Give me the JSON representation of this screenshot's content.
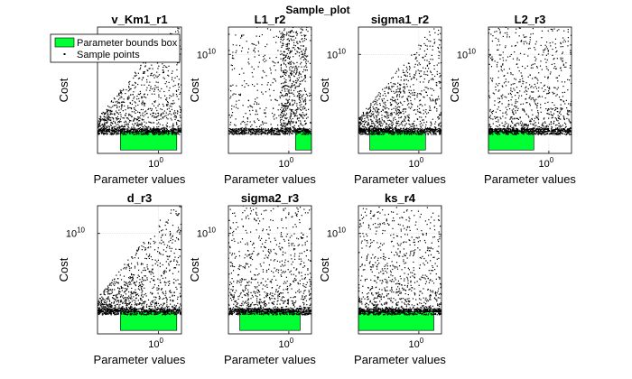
{
  "figure": {
    "title": "Sample_plot",
    "background": "#ffffff",
    "box_color": "#00ff33",
    "point_color": "#000000"
  },
  "legend": {
    "placement": "top-left of first panel",
    "entries": [
      {
        "label": "Parameter bounds box",
        "marker": "filled-box"
      },
      {
        "label": "Sample points",
        "marker": "dot"
      }
    ]
  },
  "chart_data": [
    {
      "type": "scatter",
      "title": "v_Km1_r1",
      "xlabel": "Parameter values",
      "ylabel": "Cost",
      "x_scale": "log",
      "y_scale": "log",
      "x_tick": {
        "base": "10",
        "exp": "0"
      },
      "y_tick": {
        "base": "10",
        "exp": "10"
      },
      "box": {
        "x": [
          0.1,
          3.0
        ],
        "y": [
          0.0001,
          0.05
        ]
      },
      "baseline_cost": 0.05,
      "pattern": "diagonal",
      "grid": true
    },
    {
      "type": "scatter",
      "title": "L1_r2",
      "xlabel": "Parameter values",
      "ylabel": "Cost",
      "x_scale": "log",
      "y_scale": "log",
      "x_tick": {
        "base": "10",
        "exp": "0"
      },
      "y_tick": {
        "base": "10",
        "exp": "10"
      },
      "box": {
        "x": [
          1.5,
          4.5
        ],
        "y": [
          0.0001,
          0.05
        ]
      },
      "baseline_cost": 0.05,
      "pattern": "vertical",
      "grid": true
    },
    {
      "type": "scatter",
      "title": "sigma1_r2",
      "xlabel": "Parameter values",
      "ylabel": "Cost",
      "x_scale": "log",
      "y_scale": "log",
      "x_tick": {
        "base": "10",
        "exp": "0"
      },
      "y_tick": {
        "base": "10",
        "exp": "10"
      },
      "box": {
        "x": [
          0.05,
          1.5
        ],
        "y": [
          0.0001,
          0.05
        ]
      },
      "baseline_cost": 0.05,
      "pattern": "diagonal",
      "grid": true
    },
    {
      "type": "scatter",
      "title": "L2_r3",
      "xlabel": "Parameter values",
      "ylabel": "Cost",
      "x_scale": "log",
      "y_scale": "log",
      "x_tick": {
        "base": "10",
        "exp": "0"
      },
      "y_tick": {
        "base": "10",
        "exp": "10"
      },
      "box": {
        "x": [
          0.02,
          0.4
        ],
        "y": [
          0.0001,
          0.05
        ]
      },
      "baseline_cost": 0.05,
      "pattern": "cloud",
      "grid": true
    },
    {
      "type": "scatter",
      "title": "d_r3",
      "xlabel": "Parameter values",
      "ylabel": "Cost",
      "x_scale": "log",
      "y_scale": "log",
      "x_tick": {
        "base": "10",
        "exp": "0"
      },
      "y_tick": {
        "base": "10",
        "exp": "10"
      },
      "box": {
        "x": [
          0.1,
          3.0
        ],
        "y": [
          0.0001,
          0.05
        ]
      },
      "baseline_cost": 0.05,
      "pattern": "diagonal",
      "grid": true
    },
    {
      "type": "scatter",
      "title": "sigma2_r3",
      "xlabel": "Parameter values",
      "ylabel": "Cost",
      "x_scale": "log",
      "y_scale": "log",
      "x_tick": {
        "base": "10",
        "exp": "0"
      },
      "y_tick": {
        "base": "10",
        "exp": "10"
      },
      "box": {
        "x": [
          0.05,
          2.0
        ],
        "y": [
          0.0001,
          0.05
        ]
      },
      "baseline_cost": 0.05,
      "pattern": "cloud",
      "grid": true
    },
    {
      "type": "scatter",
      "title": "ks_r4",
      "xlabel": "Parameter values",
      "ylabel": "Cost",
      "x_scale": "log",
      "y_scale": "log",
      "x_tick": {
        "base": "10",
        "exp": "0"
      },
      "y_tick": {
        "base": "10",
        "exp": "10"
      },
      "box": {
        "x": [
          0.02,
          2.5
        ],
        "y": [
          0.0001,
          0.05
        ]
      },
      "baseline_cost": 0.05,
      "pattern": "cloud",
      "grid": true
    }
  ]
}
